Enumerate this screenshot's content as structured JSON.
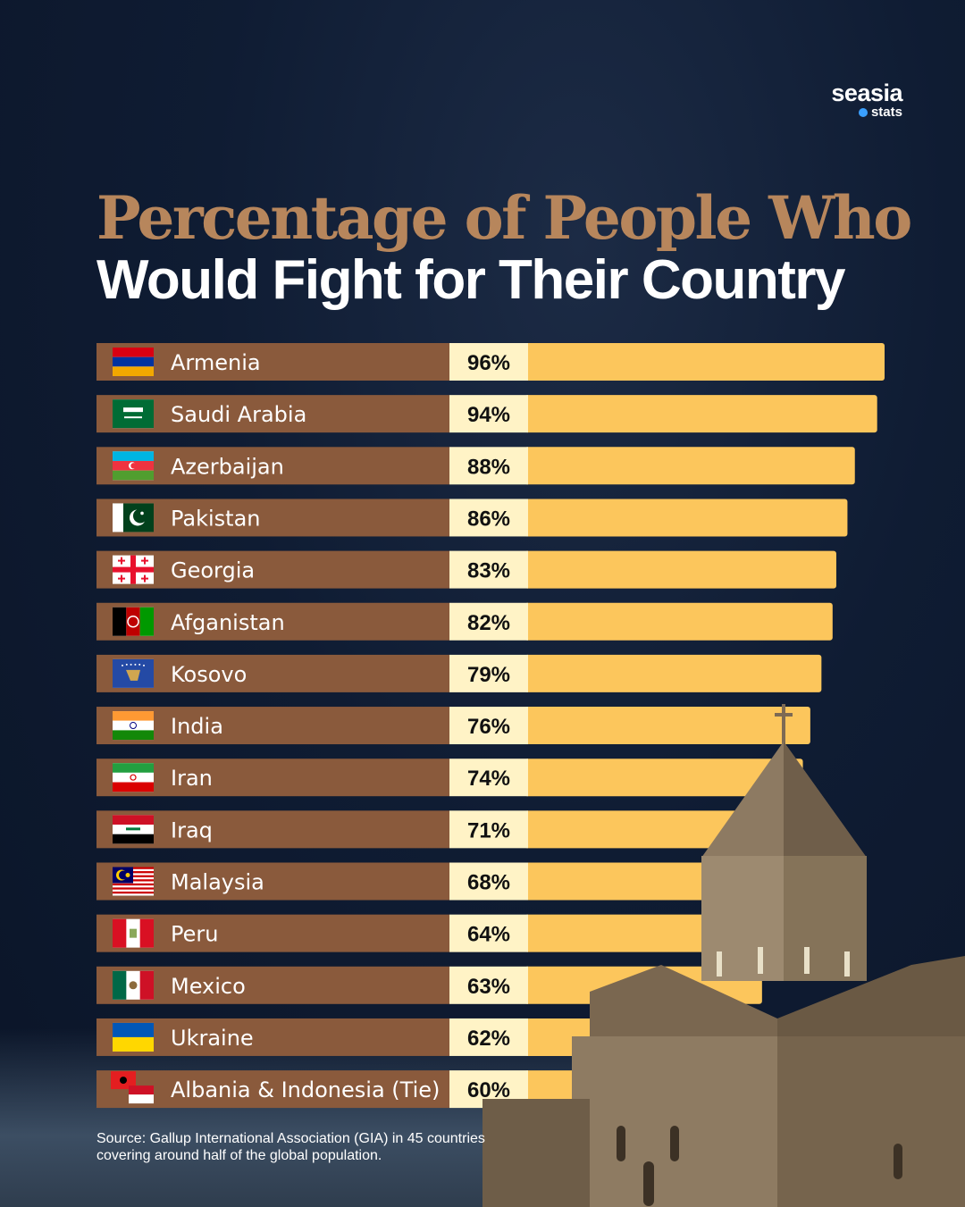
{
  "brand": {
    "name": "seasia",
    "sub": "stats"
  },
  "title_line1": "Percentage of People Who",
  "title_line2": "Would Fight for Their Country",
  "colors": {
    "label_bg": "#8a5a3c",
    "value_bg": "#fff3c6",
    "bar": "#fcc65c",
    "title_accent": "#b7865c"
  },
  "chart_data": {
    "type": "bar",
    "orientation": "horizontal",
    "categories": [
      "Armenia",
      "Saudi Arabia",
      "Azerbaijan",
      "Pakistan",
      "Georgia",
      "Afganistan",
      "Kosovo",
      "India",
      "Iran",
      "Iraq",
      "Malaysia",
      "Peru",
      "Mexico",
      "Ukraine",
      "Albania & Indonesia (Tie)"
    ],
    "values": [
      96,
      94,
      88,
      86,
      83,
      82,
      79,
      76,
      74,
      71,
      68,
      64,
      63,
      62,
      60
    ],
    "value_labels": [
      "96%",
      "94%",
      "88%",
      "86%",
      "83%",
      "82%",
      "79%",
      "76%",
      "74%",
      "71%",
      "68%",
      "64%",
      "63%",
      "62%",
      "60%"
    ],
    "flags": [
      "armenia-flag",
      "saudi-arabia-flag",
      "azerbaijan-flag",
      "pakistan-flag",
      "georgia-flag",
      "afghanistan-flag",
      "kosovo-flag",
      "india-flag",
      "iran-flag",
      "iraq-flag",
      "malaysia-flag",
      "peru-flag",
      "mexico-flag",
      "ukraine-flag",
      "albania-indonesia-flag"
    ],
    "unit": "%"
  },
  "source": "Source: Gallup International Association (GIA) in 45 countries\ncovering around half of the global population."
}
